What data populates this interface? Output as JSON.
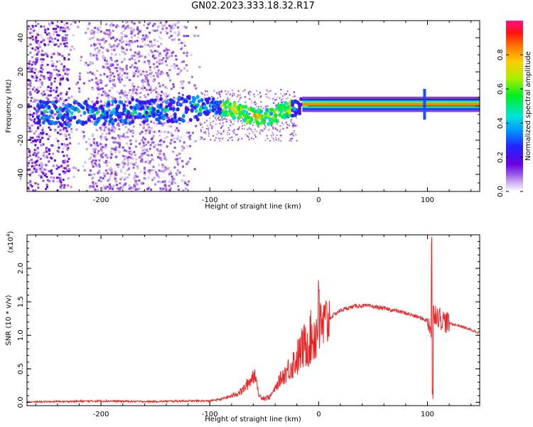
{
  "title": "GN02.2023.333.18.32.R17",
  "chart_data": [
    {
      "type": "heatmap",
      "xlabel": "Height of straight line (km)",
      "ylabel": "Frequency (Hz)",
      "xlim": [
        -268,
        148
      ],
      "ylim": [
        -50,
        50
      ],
      "xticks": [
        -200,
        -100,
        0,
        100
      ],
      "xtick_labels": [
        "-200",
        "-100",
        "0",
        "100"
      ],
      "yticks": [
        -40,
        -20,
        0,
        20,
        40
      ],
      "ytick_labels": [
        "-40",
        "-20",
        "0",
        "20",
        "40"
      ],
      "ridge": {
        "x": [
          -250,
          -230,
          -210,
          -190,
          -170,
          -150,
          -130,
          -110,
          -100,
          -90,
          -80,
          -70,
          -60,
          -50,
          -40,
          -30,
          -20,
          -15,
          -10,
          0,
          20,
          50,
          80,
          97,
          100,
          148
        ],
        "freq": [
          -3,
          -5,
          -4,
          -4,
          -3,
          -3,
          -2,
          -1,
          0,
          -1,
          -2,
          -4,
          -6,
          -7,
          -5,
          -2,
          -1,
          1,
          2,
          1,
          1,
          1,
          1,
          1,
          1,
          1
        ]
      },
      "colorbar": {
        "label": "Normalized spectral amplitude",
        "range": [
          0,
          1
        ],
        "ticks": [
          0.0,
          0.2,
          0.4,
          0.6,
          0.8
        ],
        "tick_labels": [
          "0.0",
          "0.2",
          "0.4",
          "0.6",
          "0.8"
        ],
        "colors": [
          "#ffffff",
          "#d8c2f2",
          "#9b59e8",
          "#6a00e0",
          "#2222ff",
          "#0099ff",
          "#00e5d8",
          "#00ee22",
          "#aaee00",
          "#ffcc00",
          "#ff7700",
          "#ff1111",
          "#ff1188"
        ]
      },
      "grid": false,
      "legend": "none"
    },
    {
      "type": "line",
      "xlabel": "Height of straight line (km)",
      "ylabel": "SNR (10 * v/v)",
      "y_scale_label": "(x10",
      "y_scale_exp": "4",
      "y_scale_close": ")",
      "xlim": [
        -268,
        148
      ],
      "ylim": [
        -0.05,
        2.5
      ],
      "xticks": [
        -200,
        -100,
        0,
        100
      ],
      "xtick_labels": [
        "-200",
        "-100",
        "0",
        "100"
      ],
      "yticks": [
        0.0,
        0.5,
        1.0,
        1.5,
        2.0
      ],
      "ytick_labels": [
        "0.0",
        "0.5",
        "1.0",
        "1.5",
        "2.0"
      ],
      "color": "#ee2222",
      "series": [
        {
          "x": [
            -268,
            -240,
            -200,
            -160,
            -120,
            -100,
            -90,
            -80,
            -70,
            -62,
            -58,
            -55,
            -50,
            -45,
            -40,
            -35,
            -30,
            -25,
            -20,
            -15,
            -10,
            -5,
            0,
            5,
            10,
            15,
            20,
            25,
            30,
            35,
            40,
            50,
            60,
            70,
            80,
            90,
            95,
            100,
            103,
            104,
            105,
            107,
            110,
            115,
            120,
            130,
            140,
            148
          ],
          "y": [
            0.0,
            0.01,
            0.02,
            0.01,
            0.02,
            0.02,
            0.04,
            0.08,
            0.15,
            0.3,
            0.4,
            0.1,
            0.06,
            0.08,
            0.2,
            0.35,
            0.45,
            0.55,
            0.65,
            0.8,
            0.9,
            1.0,
            1.05,
            1.15,
            1.25,
            1.32,
            1.37,
            1.4,
            1.42,
            1.44,
            1.44,
            1.43,
            1.4,
            1.37,
            1.33,
            1.28,
            1.25,
            1.22,
            1.15,
            0.5,
            1.3,
            1.35,
            1.28,
            1.22,
            1.18,
            1.14,
            1.08,
            1.04
          ]
        }
      ],
      "grid": false,
      "legend": "none"
    }
  ]
}
